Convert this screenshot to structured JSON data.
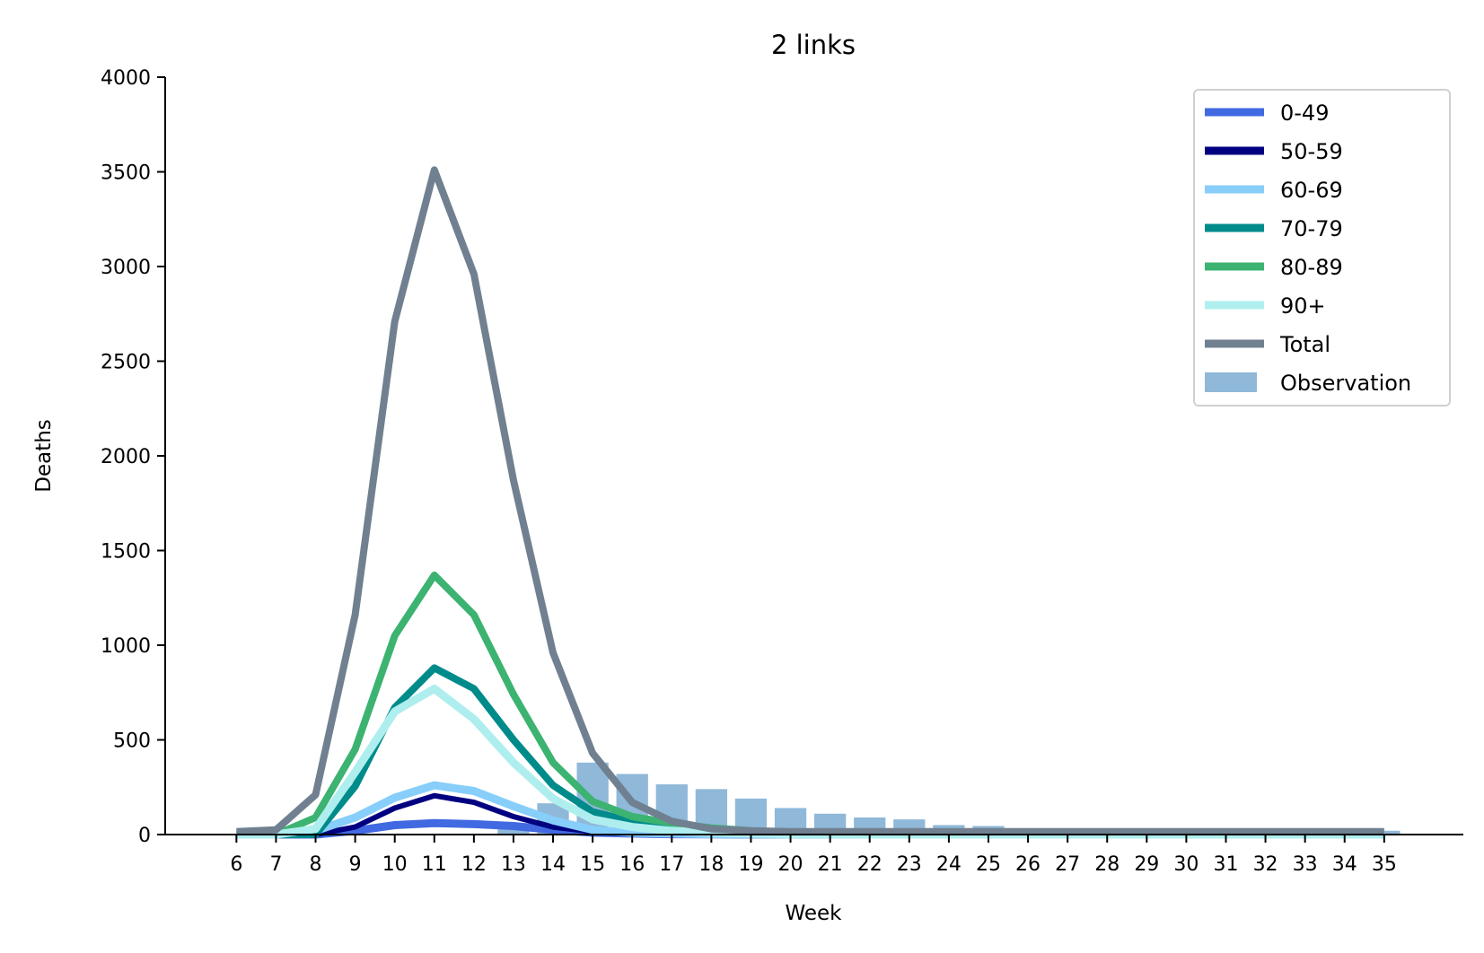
{
  "chart_data": {
    "type": "line",
    "title": "2 links",
    "xlabel": "Week",
    "ylabel": "Deaths",
    "ylim": [
      0,
      4000
    ],
    "xlim": [
      4.2,
      37
    ],
    "yticks": [
      0,
      500,
      1000,
      1500,
      2000,
      2500,
      3000,
      3500,
      4000
    ],
    "x": [
      6,
      7,
      8,
      9,
      10,
      11,
      12,
      13,
      14,
      15,
      16,
      17,
      18,
      19,
      20,
      21,
      22,
      23,
      24,
      25,
      26,
      27,
      28,
      29,
      30,
      31,
      32,
      33,
      34,
      35
    ],
    "legend_position": "top-right",
    "grid": false,
    "series": [
      {
        "name": "0-49",
        "color": "#4169e1",
        "width": 9,
        "values": [
          0,
          0,
          0,
          20,
          50,
          60,
          55,
          45,
          25,
          10,
          5,
          2,
          1,
          0,
          0,
          0,
          0,
          0,
          0,
          0,
          0,
          0,
          0,
          0,
          0,
          0,
          0,
          0,
          0,
          0
        ]
      },
      {
        "name": "50-59",
        "color": "#000080",
        "width": 6,
        "values": [
          0,
          0,
          0,
          40,
          140,
          205,
          170,
          95,
          40,
          15,
          5,
          2,
          1,
          0,
          0,
          0,
          0,
          0,
          0,
          0,
          0,
          0,
          0,
          0,
          0,
          0,
          0,
          0,
          0,
          0
        ]
      },
      {
        "name": "60-69",
        "color": "#87cefa",
        "width": 9,
        "values": [
          0,
          0,
          20,
          90,
          195,
          260,
          230,
          150,
          75,
          25,
          10,
          5,
          2,
          1,
          0,
          0,
          0,
          0,
          0,
          0,
          0,
          0,
          0,
          0,
          0,
          0,
          0,
          0,
          0,
          0
        ]
      },
      {
        "name": "70-79",
        "color": "#008b8b",
        "width": 8,
        "values": [
          0,
          0,
          0,
          255,
          670,
          880,
          770,
          500,
          260,
          120,
          70,
          40,
          20,
          10,
          5,
          2,
          1,
          0,
          0,
          0,
          0,
          0,
          0,
          0,
          0,
          0,
          0,
          0,
          0,
          0
        ]
      },
      {
        "name": "80-89",
        "color": "#3cb371",
        "width": 8,
        "values": [
          0,
          0,
          90,
          450,
          1050,
          1370,
          1160,
          740,
          380,
          175,
          95,
          60,
          35,
          20,
          10,
          5,
          2,
          1,
          0,
          0,
          0,
          0,
          0,
          0,
          0,
          0,
          0,
          0,
          0,
          0
        ]
      },
      {
        "name": "90+",
        "color": "#afeeee",
        "width": 9,
        "values": [
          0,
          0,
          30,
          330,
          650,
          770,
          610,
          380,
          190,
          80,
          40,
          20,
          10,
          5,
          2,
          1,
          0,
          0,
          0,
          0,
          0,
          0,
          0,
          0,
          0,
          0,
          0,
          0,
          0,
          0
        ]
      },
      {
        "name": "Total",
        "color": "#708090",
        "width": 8,
        "values": [
          15,
          25,
          210,
          1160,
          2710,
          3510,
          2960,
          1870,
          960,
          430,
          170,
          70,
          30,
          20,
          15,
          15,
          15,
          15,
          15,
          15,
          15,
          15,
          15,
          15,
          15,
          15,
          15,
          15,
          15,
          15
        ]
      }
    ],
    "observation": {
      "name": "Observation",
      "color": "#8fb8d9",
      "values": [
        0,
        0,
        0,
        0,
        0,
        0,
        0,
        55,
        165,
        380,
        320,
        265,
        240,
        190,
        140,
        110,
        90,
        80,
        50,
        45,
        25,
        20,
        20,
        20,
        20,
        20,
        20,
        20,
        20,
        20
      ]
    }
  }
}
